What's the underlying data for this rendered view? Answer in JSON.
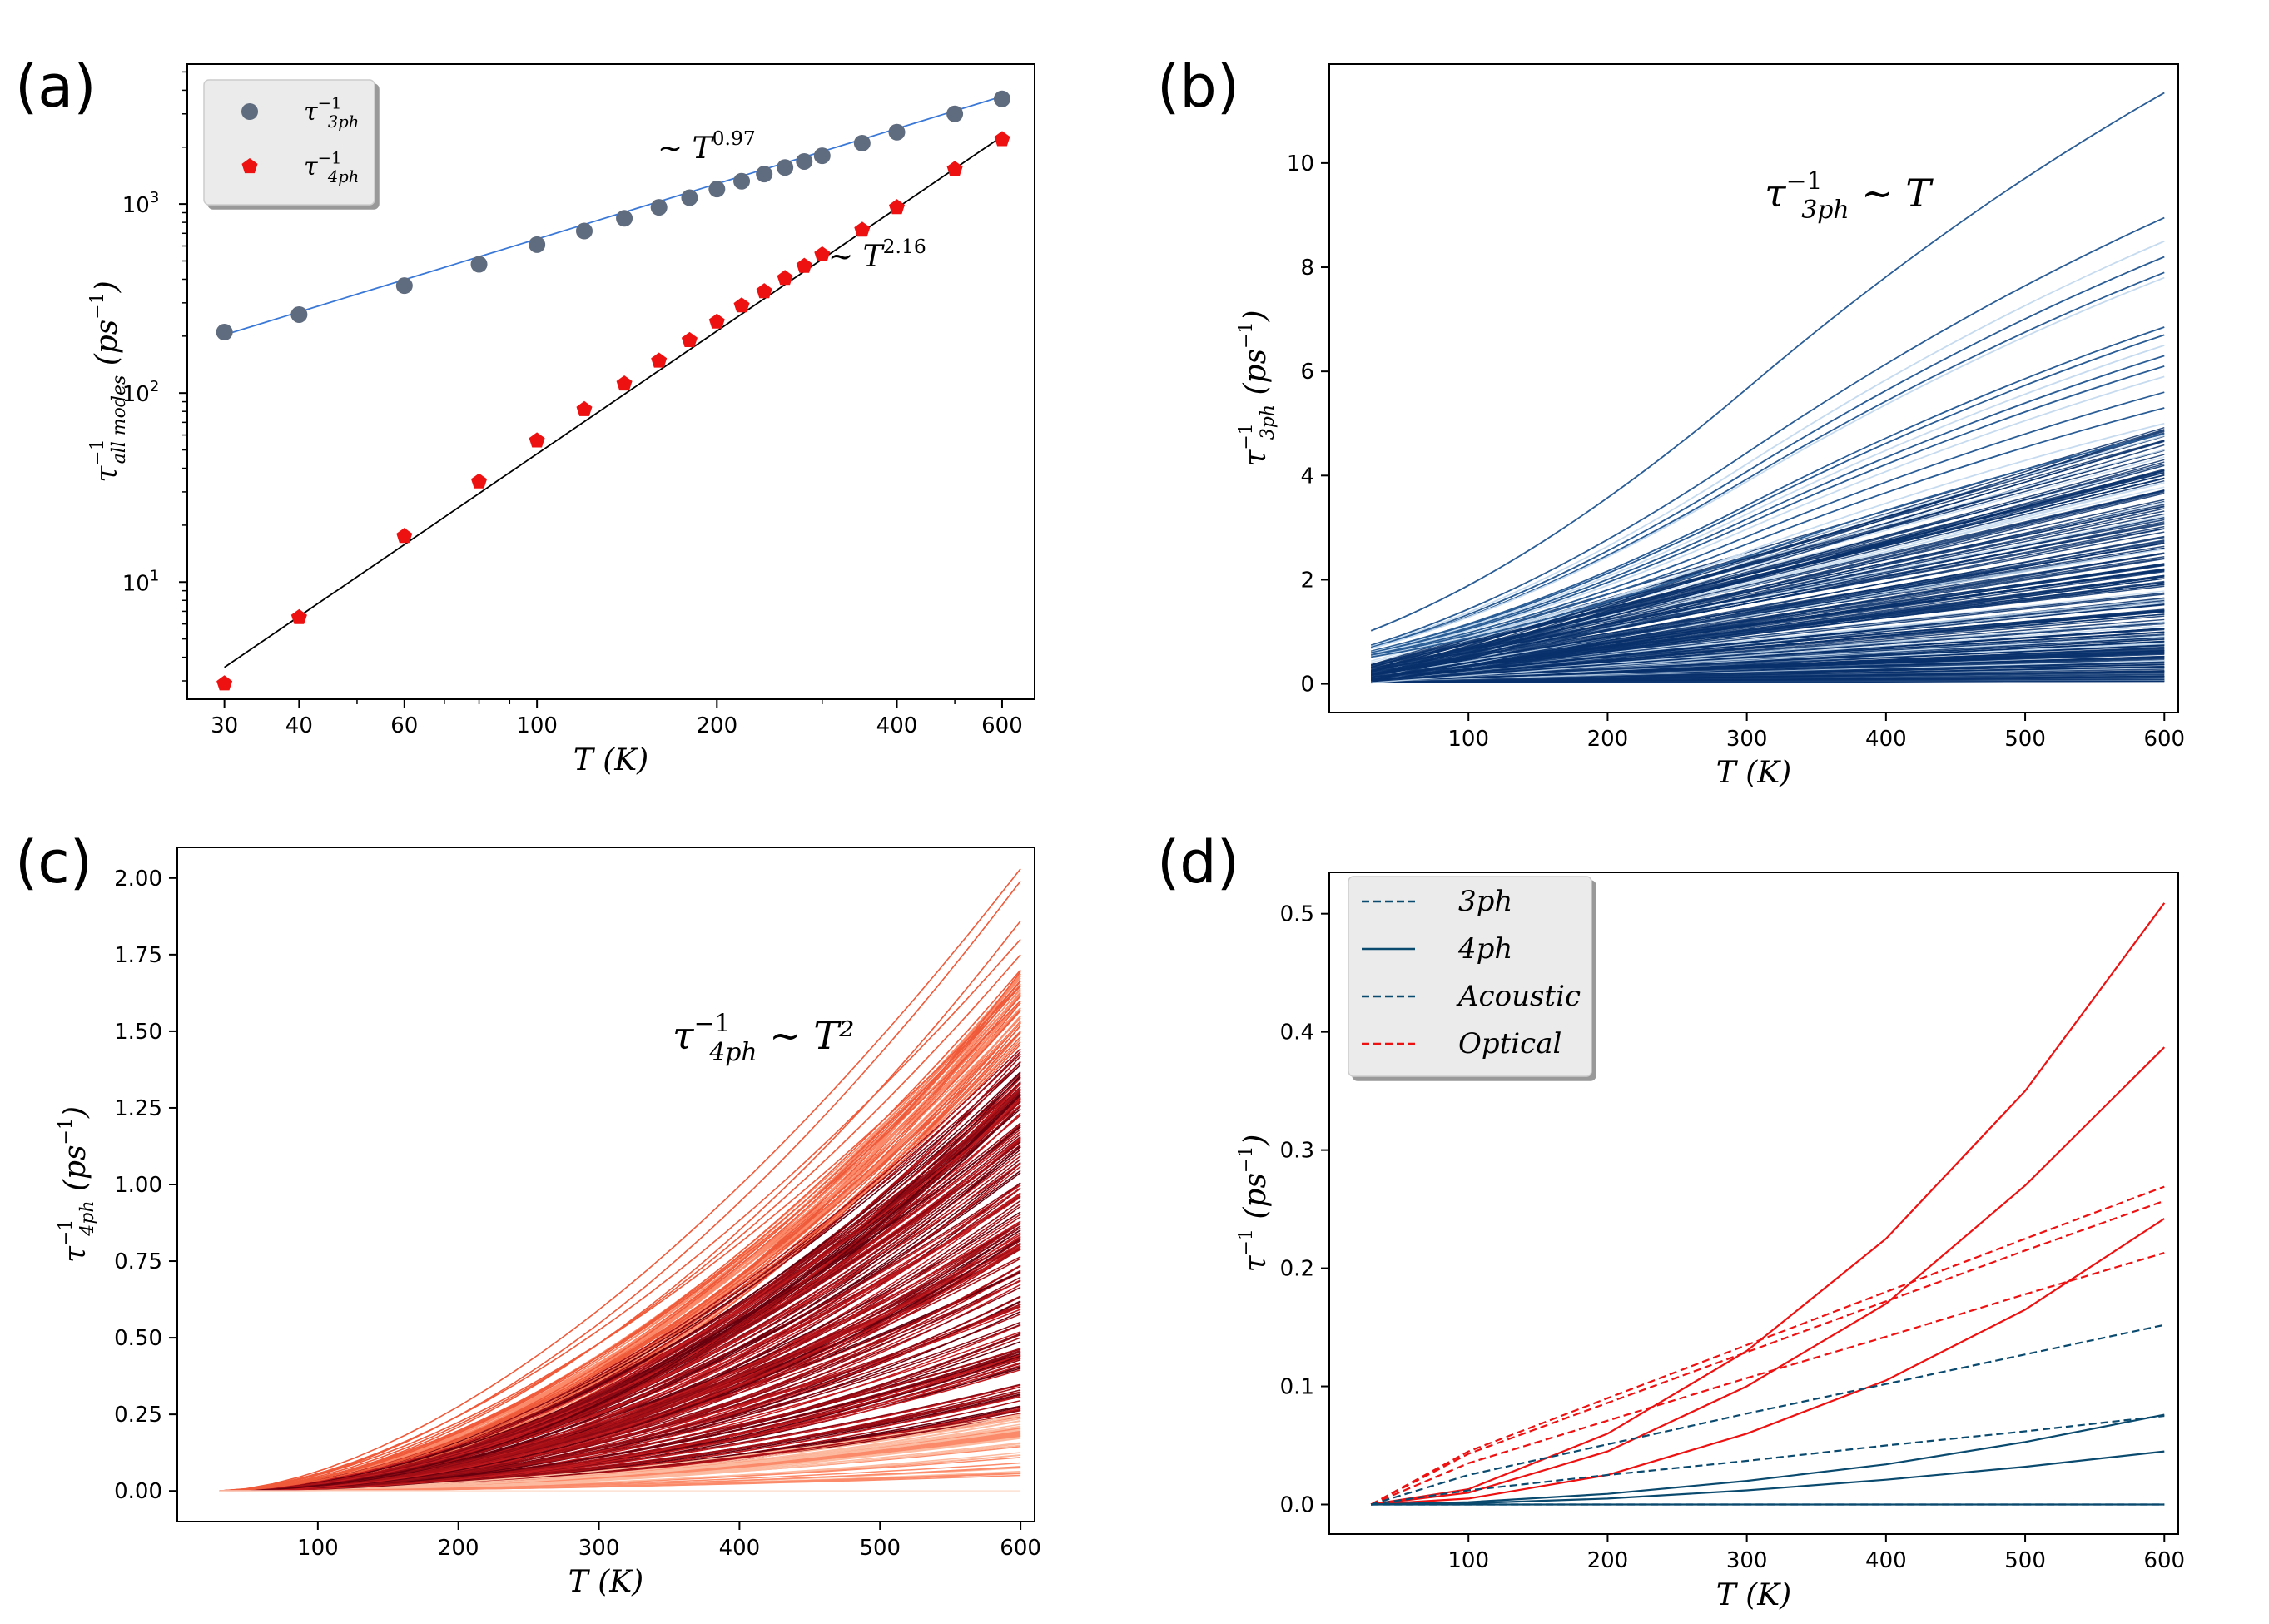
{
  "chart_data": [
    {
      "id": "a",
      "panel_label": "(a)",
      "type": "scatter",
      "xscale": "log",
      "yscale": "log",
      "xlim": [
        26,
        680
      ],
      "ylim": [
        2.4,
        5500
      ],
      "xticks": [
        30,
        40,
        60,
        100,
        200,
        400,
        600
      ],
      "xtick_labels": [
        "30",
        "40",
        "60",
        "100",
        "200",
        "400",
        "600"
      ],
      "yticks": [
        10,
        100,
        1000
      ],
      "xlabel": "T (K)",
      "ylabel": "τ⁻¹ all modes (ps⁻¹)",
      "legend": {
        "location": "top-left",
        "entries": [
          "τ3ph⁻¹",
          "τ4ph⁻¹"
        ]
      },
      "series": [
        {
          "name": "τ3ph⁻¹",
          "marker": "circle",
          "color": "#5f6b7e",
          "x": [
            30,
            40,
            60,
            80,
            100,
            120,
            140,
            160,
            180,
            200,
            220,
            240,
            260,
            280,
            300,
            350,
            400,
            500,
            600
          ],
          "values": [
            210,
            260,
            370,
            480,
            610,
            720,
            840,
            960,
            1080,
            1200,
            1320,
            1440,
            1560,
            1680,
            1800,
            2100,
            2400,
            3000,
            3600
          ],
          "fit": {
            "color": "#3a78d8",
            "prefactor": 7.5,
            "exponent": 0.97,
            "label": "~ T^0.97"
          }
        },
        {
          "name": "τ4ph⁻¹",
          "marker": "pentagon",
          "color": "#ee1111",
          "x": [
            30,
            40,
            60,
            80,
            100,
            120,
            140,
            160,
            180,
            200,
            220,
            240,
            260,
            280,
            300,
            350,
            400,
            500,
            600
          ],
          "values": [
            2.9,
            6.5,
            17.5,
            34,
            56,
            82,
            112,
            148,
            190,
            238,
            290,
            345,
            405,
            470,
            540,
            730,
            960,
            1530,
            2200
          ],
          "fit": {
            "color": "#000000",
            "prefactor": 0.00228,
            "exponent": 2.16,
            "label": "~ T^2.16"
          }
        }
      ]
    },
    {
      "id": "b",
      "panel_label": "(b)",
      "type": "line",
      "xlim": [
        0,
        610
      ],
      "ylim": [
        -0.55,
        11.9
      ],
      "xticks": [
        100,
        200,
        300,
        400,
        500,
        600
      ],
      "yticks": [
        0,
        2,
        4,
        6,
        8,
        10
      ],
      "xlabel": "T (K)",
      "ylabel": "τ3ph⁻¹ (ps⁻¹)",
      "annotation": "τ3ph⁻¹ ~ T",
      "x_range": [
        30,
        600
      ],
      "line_color_dark": "#08306b",
      "line_color_light": "#c6dbef",
      "endpoints_600K": [
        11.35,
        8.95,
        8.5,
        8.2,
        7.9,
        7.8,
        6.85,
        6.7,
        6.5,
        6.3,
        6.1,
        5.9,
        5.6,
        5.3,
        5.0,
        4.8
      ]
    },
    {
      "id": "c",
      "panel_label": "(c)",
      "type": "line",
      "xlim": [
        0,
        610
      ],
      "ylim": [
        -0.1,
        2.1
      ],
      "xticks": [
        100,
        200,
        300,
        400,
        500,
        600
      ],
      "ytick_labels": [
        "0.00",
        "0.25",
        "0.50",
        "0.75",
        "1.00",
        "1.25",
        "1.50",
        "1.75",
        "2.00"
      ],
      "yticks": [
        0,
        0.25,
        0.5,
        0.75,
        1.0,
        1.25,
        1.5,
        1.75,
        2.0
      ],
      "xlabel": "T (K)",
      "ylabel": "τ4ph⁻¹ (ps⁻¹)",
      "annotation": "τ4ph⁻¹ ~ T²",
      "x_range": [
        30,
        600
      ],
      "line_color_dark": "#67000d",
      "line_color_light": "#fcbba1",
      "endpoints_600K": [
        2.03,
        1.99,
        1.86,
        1.8,
        1.75,
        1.7,
        1.65,
        1.6,
        1.5
      ]
    },
    {
      "id": "d",
      "panel_label": "(d)",
      "type": "line",
      "xlim": [
        0,
        610
      ],
      "ylim": [
        -0.025,
        0.535
      ],
      "xticks": [
        100,
        200,
        300,
        400,
        500,
        600
      ],
      "ytick_labels": [
        "0.0",
        "0.1",
        "0.2",
        "0.3",
        "0.4",
        "0.5"
      ],
      "yticks": [
        0,
        0.1,
        0.2,
        0.3,
        0.4,
        0.5
      ],
      "xlabel": "T (K)",
      "ylabel": "τ⁻¹ (ps⁻¹)",
      "legend": {
        "location": "top-left",
        "entries": [
          "3ph",
          "4ph",
          "Acoustic",
          "Optical"
        ]
      },
      "x": [
        30,
        100,
        200,
        300,
        400,
        500,
        600
      ],
      "series": [
        {
          "name": "optical 4ph",
          "color": "#ee1111",
          "style": "solid",
          "values": [
            0.0,
            0.013,
            0.06,
            0.13,
            0.225,
            0.35,
            0.509
          ]
        },
        {
          "name": "optical 4ph",
          "color": "#ee1111",
          "style": "solid",
          "values": [
            0.0,
            0.01,
            0.045,
            0.1,
            0.17,
            0.27,
            0.387
          ]
        },
        {
          "name": "optical 4ph",
          "color": "#ee1111",
          "style": "solid",
          "values": [
            0.0,
            0.005,
            0.025,
            0.06,
            0.105,
            0.165,
            0.242
          ]
        },
        {
          "name": "optical 3ph",
          "color": "#ee1111",
          "style": "dashed",
          "values": [
            0.0,
            0.045,
            0.09,
            0.135,
            0.18,
            0.225,
            0.269
          ]
        },
        {
          "name": "optical 3ph",
          "color": "#ee1111",
          "style": "dashed",
          "values": [
            0.0,
            0.043,
            0.086,
            0.129,
            0.172,
            0.215,
            0.257
          ]
        },
        {
          "name": "optical 3ph",
          "color": "#ee1111",
          "style": "dashed",
          "values": [
            0.0,
            0.035,
            0.071,
            0.107,
            0.142,
            0.178,
            0.213
          ]
        },
        {
          "name": "acoustic 3ph",
          "color": "#0b4a6f",
          "style": "dashed",
          "values": [
            0.0,
            0.025,
            0.051,
            0.077,
            0.102,
            0.127,
            0.152
          ]
        },
        {
          "name": "acoustic 3ph",
          "color": "#0b4a6f",
          "style": "dashed",
          "values": [
            0.0,
            0.012,
            0.025,
            0.037,
            0.05,
            0.062,
            0.075
          ]
        },
        {
          "name": "acoustic 3ph",
          "color": "#0b4a6f",
          "style": "dashed",
          "values": [
            0.0,
            0.0,
            0.0,
            0.0,
            0.0,
            0.0,
            0.0
          ]
        },
        {
          "name": "acoustic 4ph",
          "color": "#0b4a6f",
          "style": "solid",
          "values": [
            0.0,
            0.002,
            0.009,
            0.02,
            0.034,
            0.053,
            0.076
          ]
        },
        {
          "name": "acoustic 4ph",
          "color": "#0b4a6f",
          "style": "solid",
          "values": [
            0.0,
            0.001,
            0.005,
            0.012,
            0.021,
            0.032,
            0.045
          ]
        },
        {
          "name": "acoustic 4ph",
          "color": "#0b4a6f",
          "style": "solid",
          "values": [
            0.0,
            0.0,
            0.0,
            0.0,
            0.0,
            0.0,
            0.0
          ]
        }
      ]
    }
  ]
}
